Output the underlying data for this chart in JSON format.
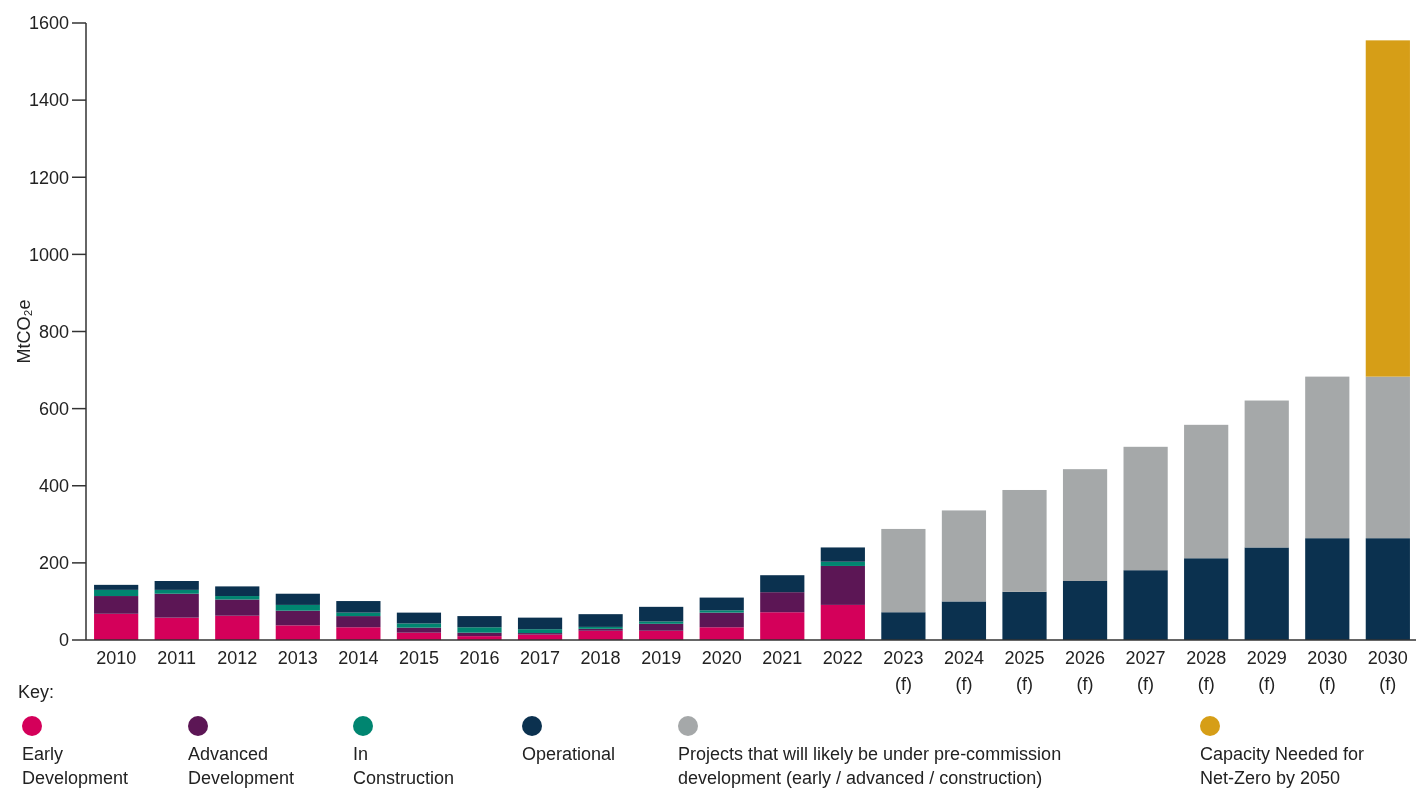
{
  "chart_data": {
    "type": "bar",
    "stacked": true,
    "ylabel": "MtCO₂e",
    "legend_title": "Key:",
    "legend": "bottom",
    "grid": false,
    "categories": [
      "2010",
      "2011",
      "2012",
      "2013",
      "2014",
      "2015",
      "2016",
      "2017",
      "2018",
      "2019",
      "2020",
      "2021",
      "2022",
      "2023 (f)",
      "2024 (f)",
      "2025 (f)",
      "2026 (f)",
      "2027 (f)",
      "2028 (f)",
      "2029 (f)",
      "2030 (f)",
      "2030 (f)"
    ],
    "ylim": [
      0,
      1600
    ],
    "yticks": [
      0,
      200,
      400,
      600,
      800,
      1000,
      1200,
      1400,
      1600
    ],
    "series": [
      {
        "name": "Early Development",
        "color": "#d4005a",
        "values": [
          68,
          58,
          63,
          38,
          33,
          19,
          10,
          14,
          24,
          24,
          33,
          72,
          91,
          null,
          null,
          null,
          null,
          null,
          null,
          null,
          null,
          null
        ]
      },
      {
        "name": "Advanced Development",
        "color": "#5c1655",
        "values": [
          46,
          62,
          42,
          38,
          29,
          13,
          9,
          4,
          5,
          18,
          38,
          52,
          101,
          null,
          null,
          null,
          null,
          null,
          null,
          null,
          null,
          null
        ]
      },
      {
        "name": "In Construction",
        "color": "#008570",
        "values": [
          16,
          10,
          9,
          15,
          9,
          11,
          14,
          10,
          5,
          6,
          6,
          0,
          11,
          null,
          null,
          null,
          null,
          null,
          null,
          null,
          null,
          null
        ]
      },
      {
        "name": "Operational",
        "color": "#0b314f",
        "values": [
          13,
          23,
          25,
          29,
          30,
          28,
          29,
          30,
          33,
          38,
          33,
          44,
          37,
          72,
          100,
          125,
          153,
          181,
          212,
          240,
          264,
          264
        ]
      },
      {
        "name": "Projects that will likely be under pre-commission development (early / advanced / construction)",
        "color": "#a5a8a9",
        "values": [
          null,
          null,
          null,
          null,
          null,
          null,
          null,
          null,
          null,
          null,
          null,
          null,
          null,
          216,
          236,
          264,
          290,
          320,
          346,
          381,
          419,
          419
        ]
      },
      {
        "name": "Capacity Needed for Net-Zero by 2050",
        "color": "#d69e17",
        "values": [
          null,
          null,
          null,
          null,
          null,
          null,
          null,
          null,
          null,
          null,
          null,
          null,
          null,
          null,
          null,
          null,
          null,
          null,
          null,
          null,
          null,
          872
        ]
      }
    ]
  }
}
